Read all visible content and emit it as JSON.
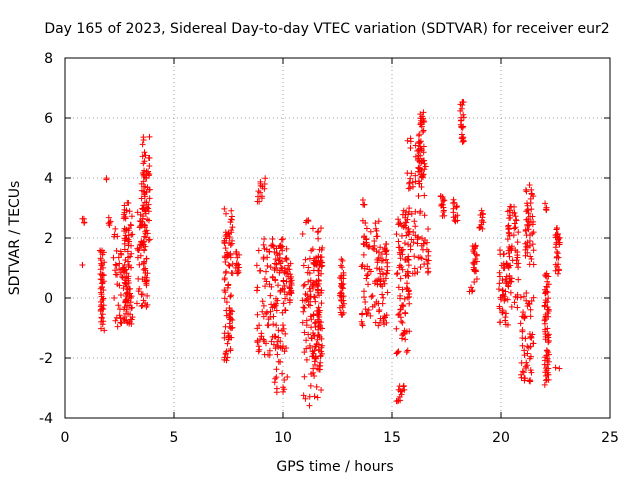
{
  "chart_data": {
    "type": "scatter",
    "title": "Day 165 of 2023, Sidereal Day-to-day VTEC variation (SDTVAR) for receiver eur2",
    "xlabel": "GPS time / hours",
    "ylabel": "SDTVAR / TECUs",
    "xlim": [
      0,
      25
    ],
    "ylim": [
      -4,
      8
    ],
    "xticks": [
      0,
      5,
      10,
      15,
      20,
      25
    ],
    "yticks": [
      -4,
      -2,
      0,
      2,
      4,
      6,
      8
    ],
    "grid": true,
    "marker": "+",
    "color": "#ff0000",
    "clusters": [
      {
        "x": [
          0.8,
          0.9
        ],
        "y": [
          2.5,
          2.7
        ]
      },
      {
        "x": [
          0.8,
          0.8
        ],
        "y": [
          1.1,
          1.1
        ]
      },
      {
        "x": [
          1.6,
          1.8
        ],
        "y": [
          -1.1,
          1.6
        ]
      },
      {
        "x": [
          1.9,
          1.9
        ],
        "y": [
          3.9,
          4.0
        ]
      },
      {
        "x": [
          2.0,
          2.1
        ],
        "y": [
          2.4,
          2.7
        ]
      },
      {
        "x": [
          2.2,
          3.0
        ],
        "y": [
          -1.1,
          2.4
        ]
      },
      {
        "x": [
          2.7,
          3.1
        ],
        "y": [
          -0.9,
          3.2
        ]
      },
      {
        "x": [
          3.3,
          3.8
        ],
        "y": [
          -0.3,
          3.1
        ]
      },
      {
        "x": [
          3.5,
          3.9
        ],
        "y": [
          1.5,
          5.4
        ]
      },
      {
        "x": [
          7.3,
          7.7
        ],
        "y": [
          -2.1,
          3.0
        ]
      },
      {
        "x": [
          7.8,
          8.0
        ],
        "y": [
          0.8,
          1.6
        ]
      },
      {
        "x": [
          8.8,
          9.2
        ],
        "y": [
          3.2,
          4.0
        ]
      },
      {
        "x": [
          8.8,
          9.6
        ],
        "y": [
          -1.9,
          2.0
        ]
      },
      {
        "x": [
          9.6,
          10.2
        ],
        "y": [
          -3.2,
          2.0
        ]
      },
      {
        "x": [
          10.2,
          10.4
        ],
        "y": [
          -0.2,
          1.2
        ]
      },
      {
        "x": [
          10.9,
          11.8
        ],
        "y": [
          -3.6,
          2.6
        ]
      },
      {
        "x": [
          11.4,
          11.8
        ],
        "y": [
          -2.4,
          1.6
        ]
      },
      {
        "x": [
          12.6,
          12.8
        ],
        "y": [
          -0.6,
          1.4
        ]
      },
      {
        "x": [
          13.6,
          13.8
        ],
        "y": [
          3.1,
          3.3
        ]
      },
      {
        "x": [
          13.6,
          14.4
        ],
        "y": [
          -1.1,
          2.6
        ]
      },
      {
        "x": [
          14.4,
          14.8
        ],
        "y": [
          -0.9,
          1.9
        ]
      },
      {
        "x": [
          15.2,
          15.6
        ],
        "y": [
          -3.6,
          -2.8
        ]
      },
      {
        "x": [
          15.2,
          15.8
        ],
        "y": [
          -2.1,
          3.0
        ]
      },
      {
        "x": [
          15.7,
          16.7
        ],
        "y": [
          0.8,
          5.4
        ]
      },
      {
        "x": [
          16.2,
          16.5
        ],
        "y": [
          3.8,
          6.3
        ]
      },
      {
        "x": [
          17.2,
          17.4
        ],
        "y": [
          2.6,
          3.4
        ]
      },
      {
        "x": [
          17.8,
          18.0
        ],
        "y": [
          2.5,
          3.3
        ]
      },
      {
        "x": [
          18.1,
          18.3
        ],
        "y": [
          5.2,
          6.6
        ]
      },
      {
        "x": [
          18.5,
          18.7
        ],
        "y": [
          0.2,
          0.4
        ]
      },
      {
        "x": [
          18.7,
          18.9
        ],
        "y": [
          0.5,
          1.9
        ]
      },
      {
        "x": [
          19.0,
          19.2
        ],
        "y": [
          2.3,
          3.0
        ]
      },
      {
        "x": [
          19.9,
          20.4
        ],
        "y": [
          -0.9,
          1.6
        ]
      },
      {
        "x": [
          20.3,
          20.8
        ],
        "y": [
          -0.4,
          3.1
        ]
      },
      {
        "x": [
          20.9,
          21.5
        ],
        "y": [
          -2.9,
          0.2
        ]
      },
      {
        "x": [
          21.1,
          21.5
        ],
        "y": [
          1.1,
          3.8
        ]
      },
      {
        "x": [
          22.0,
          22.2
        ],
        "y": [
          -2.9,
          1.0
        ]
      },
      {
        "x": [
          22.0,
          22.1
        ],
        "y": [
          2.9,
          3.2
        ]
      },
      {
        "x": [
          22.5,
          22.7
        ],
        "y": [
          0.8,
          2.5
        ]
      },
      {
        "x": [
          22.5,
          22.7
        ],
        "y": [
          -2.4,
          -2.3
        ]
      }
    ]
  }
}
